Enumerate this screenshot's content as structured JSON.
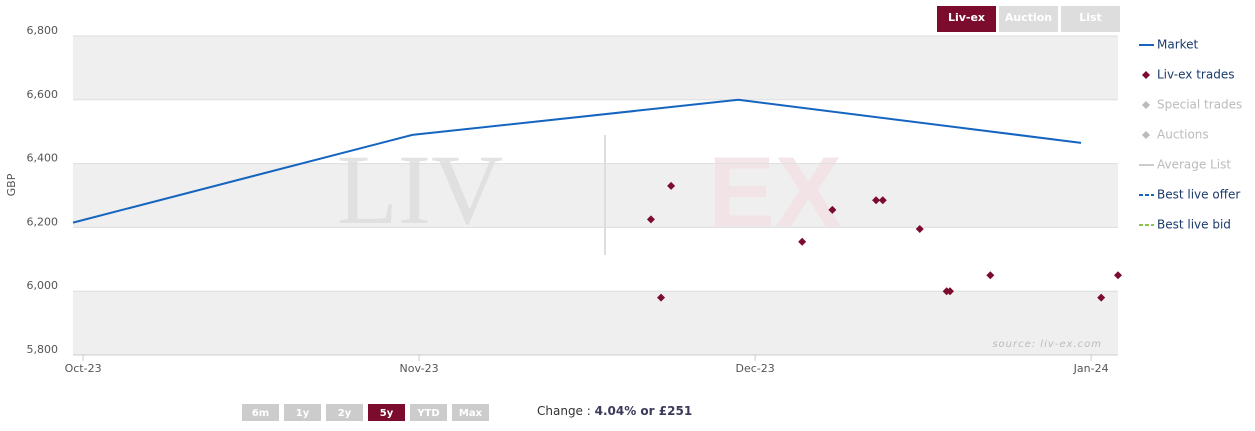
{
  "chart_data": {
    "type": "line",
    "y_label": "GBP",
    "ylim": [
      5800,
      6800
    ],
    "yticks": [
      {
        "value": 5800,
        "label": "5,800"
      },
      {
        "value": 6000,
        "label": "6,000"
      },
      {
        "value": 6200,
        "label": "6,200"
      },
      {
        "value": 6400,
        "label": "6,400"
      },
      {
        "value": 6600,
        "label": "6,600"
      },
      {
        "value": 6800,
        "label": "6,800"
      }
    ],
    "xlim": [
      -0.03,
      3.08
    ],
    "xticks": [
      {
        "value": 0,
        "label": "Oct-23"
      },
      {
        "value": 1,
        "label": "Nov-23"
      },
      {
        "value": 2,
        "label": "Dec-23"
      },
      {
        "value": 3,
        "label": "Jan-24"
      }
    ],
    "series": [
      {
        "name": "Market",
        "type": "line",
        "color": "#1565c0",
        "x": [
          -0.03,
          0.98,
          1.95,
          2.97
        ],
        "values": [
          6215,
          6490,
          6600,
          6465
        ]
      },
      {
        "name": "Liv-ex trades",
        "type": "scatter",
        "color": "#7b0c2e",
        "x": [
          1.69,
          1.72,
          1.75,
          2.14,
          2.23,
          2.36,
          2.38,
          2.49,
          2.57,
          2.58,
          2.7,
          3.03,
          3.08
        ],
        "values": [
          6225,
          5980,
          6330,
          6155,
          6255,
          6285,
          6285,
          6195,
          6000,
          6000,
          6050,
          5980,
          6050
        ]
      }
    ],
    "hidden_series": [
      {
        "name": "Special trades",
        "symbol": "diamond",
        "color": "#bbbbbb"
      },
      {
        "name": "Auctions",
        "symbol": "diamond",
        "color": "#bbbbbb"
      },
      {
        "name": "Average List",
        "symbol": "line",
        "color": "#cccccc"
      },
      {
        "name": "Best live offer",
        "symbol": "dash",
        "color": "#1565c0"
      },
      {
        "name": "Best live bid",
        "symbol": "dash",
        "color": "#8bc34a"
      }
    ],
    "watermark": [
      "LIV",
      "EX"
    ],
    "source": "source: liv-ex.com",
    "view_buttons": [
      "Liv-ex",
      "Auction",
      "List"
    ],
    "active_view": 0,
    "range_buttons": [
      "6m",
      "1y",
      "2y",
      "5y",
      "YTD",
      "Max"
    ],
    "active_range": 3,
    "change_label": "Change : ",
    "change_value": "4.04% or £251"
  }
}
